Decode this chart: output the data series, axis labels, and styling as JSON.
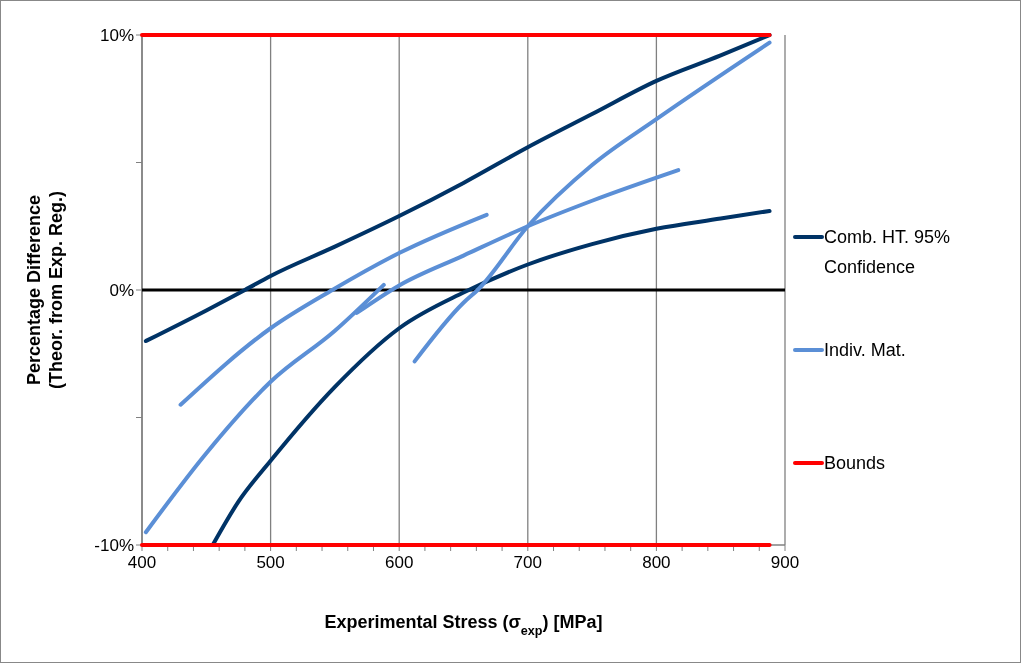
{
  "chart_data": {
    "type": "line",
    "xlabel": "Experimental Stress (σ$_{exp}$) [MPa]",
    "ylabel": "Percentage Difference\n(Theor. from Exp. Reg.)",
    "xlim": [
      400,
      900
    ],
    "ylim": [
      -10,
      10
    ],
    "xticks": [
      400,
      {
        "value": 420,
        "label": null
      },
      {
        "value": 440,
        "label": null
      },
      {
        "value": 460,
        "label": null
      },
      {
        "value": 480,
        "label": null
      },
      500,
      {
        "value": 520,
        "label": null
      },
      {
        "value": 540,
        "label": null
      },
      {
        "value": 560,
        "label": null
      },
      {
        "value": 580,
        "label": null
      },
      600,
      {
        "value": 620,
        "label": null
      },
      {
        "value": 640,
        "label": null
      },
      {
        "value": 660,
        "label": null
      },
      {
        "value": 680,
        "label": null
      },
      700,
      {
        "value": 720,
        "label": null
      },
      {
        "value": 740,
        "label": null
      },
      {
        "value": 760,
        "label": null
      },
      {
        "value": 780,
        "label": null
      },
      800,
      {
        "value": 820,
        "label": null
      },
      {
        "value": 840,
        "label": null
      },
      {
        "value": 860,
        "label": null
      },
      {
        "value": 880,
        "label": null
      },
      900
    ],
    "yticks": [
      {
        "value": -10,
        "label": "-10%"
      },
      {
        "value": -5,
        "label": null
      },
      {
        "value": 0,
        "label": "0%"
      },
      {
        "value": 5,
        "label": null
      },
      {
        "value": 10,
        "label": "10%"
      }
    ],
    "grid": "x",
    "legend": "right",
    "marker": "none",
    "line_style": "solid",
    "ref_lines": [
      {
        "axis": "y",
        "value": 0,
        "color": "#000000"
      }
    ],
    "series": [
      {
        "name": "Comb. HT. 95% Confidence",
        "color": "#003366",
        "x": [
          403,
          450,
          480,
          500,
          550,
          600,
          650,
          700,
          750,
          800,
          850,
          888
        ],
        "values": [
          -2.0,
          -0.8,
          0,
          0.55,
          1.7,
          2.9,
          4.2,
          5.6,
          6.9,
          8.2,
          9.2,
          10
        ]
      },
      {
        "color": "#003366",
        "x": [
          455,
          475,
          500,
          550,
          600,
          650,
          700,
          750,
          800,
          850,
          888
        ],
        "values": [
          -10,
          -8.3,
          -6.7,
          -3.8,
          -1.5,
          -0.1,
          1.0,
          1.8,
          2.4,
          2.8,
          3.1
        ]
      },
      {
        "name": "Indiv. Mat.",
        "color": "#5b8fd6",
        "x": [
          403,
          450,
          500,
          550,
          588
        ],
        "values": [
          -9.5,
          -6.4,
          -3.6,
          -1.6,
          0.2
        ]
      },
      {
        "color": "#5b8fd6",
        "x": [
          567,
          600,
          650,
          700,
          750,
          817
        ],
        "values": [
          -0.9,
          0.18,
          1.35,
          2.5,
          3.5,
          4.7
        ]
      },
      {
        "color": "#5b8fd6",
        "x": [
          430,
          500,
          548,
          600,
          668
        ],
        "values": [
          -4.5,
          -1.5,
          0,
          1.45,
          2.95
        ]
      },
      {
        "color": "#5b8fd6",
        "x": [
          612,
          650,
          661,
          700,
          750,
          800,
          888
        ],
        "values": [
          -2.8,
          -0.5,
          0,
          2.5,
          4.9,
          6.7,
          9.7
        ]
      },
      {
        "name": "Bounds",
        "color": "#ff0000",
        "x": [
          400,
          888
        ],
        "values": [
          10,
          10
        ]
      },
      {
        "color": "#ff0000",
        "x": [
          400,
          888
        ],
        "values": [
          -10,
          -10
        ]
      }
    ]
  }
}
